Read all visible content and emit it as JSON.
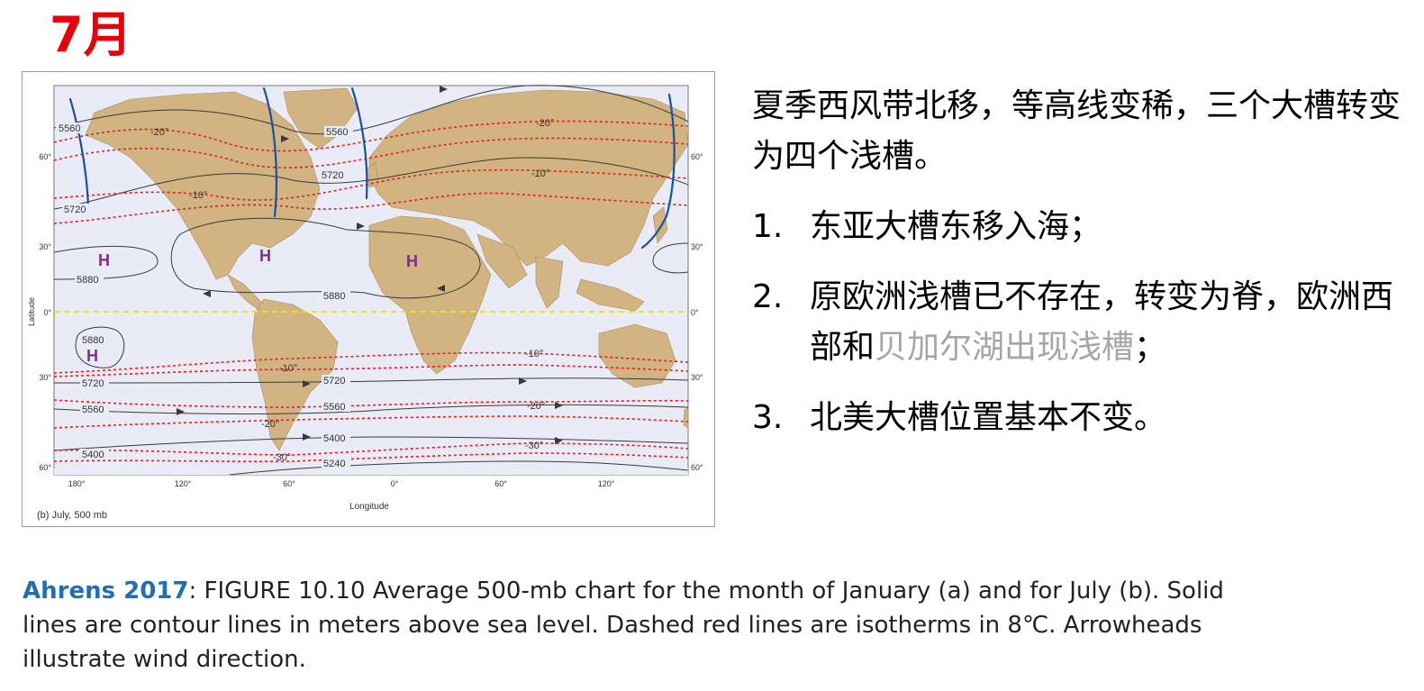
{
  "title": "7月",
  "figure": {
    "panel_label": "(b) July, 500 mb",
    "x_axis_label": "Longitude",
    "y_axis_label": "Latitude",
    "bottom_ticks": [
      "180°",
      "120°",
      "60°",
      "0°",
      "60°",
      "120°"
    ],
    "left_ticks": [
      "60°",
      "30°",
      "0°",
      "30°",
      "60°"
    ],
    "right_ticks": [
      "60°",
      "30°",
      "0°",
      "30°",
      "60°"
    ],
    "contour_labels": [
      "5560",
      "5720",
      "5720",
      "5560",
      "5880",
      "5880",
      "5880",
      "5720",
      "5720",
      "5560",
      "5560",
      "5400",
      "5400",
      "5240"
    ],
    "isotherm_labels": [
      "-20°",
      "-20°",
      "-10°",
      "-10°",
      "-10°",
      "-10°",
      "-20°",
      "-20°",
      "-30°",
      "-30°"
    ],
    "high_labels": [
      "H",
      "H",
      "H",
      "H"
    ],
    "colors": {
      "ocean": "#e9ecf6",
      "land": "#d2b483",
      "contour": "#3a3a3a",
      "isotherm": "#e0201e",
      "equator": "#f0e020",
      "trough": "#1d4fa0",
      "high": "#7a2e8e"
    }
  },
  "panel": {
    "intro": "夏季西风带北移，等高线变稀，三个大槽转变为四个浅槽。",
    "items": [
      {
        "num": "1.",
        "text": "东亚大槽东移入海；"
      },
      {
        "num": "2.",
        "text_a": "原欧洲浅槽已不存在，转变为脊，欧洲西部和",
        "text_b": "贝加尔湖出现浅槽",
        "text_c": "；"
      },
      {
        "num": "3.",
        "text": "北美大槽位置基本不变。"
      }
    ]
  },
  "caption": {
    "author": "Ahrens 2017",
    "text": ": FIGURE 10.10 Average 500-mb chart for the month of January (a) and for July (b). Solid lines are contour lines in meters above sea level. Dashed red lines are isotherms in 8℃. Arrowheads illustrate wind direction."
  }
}
